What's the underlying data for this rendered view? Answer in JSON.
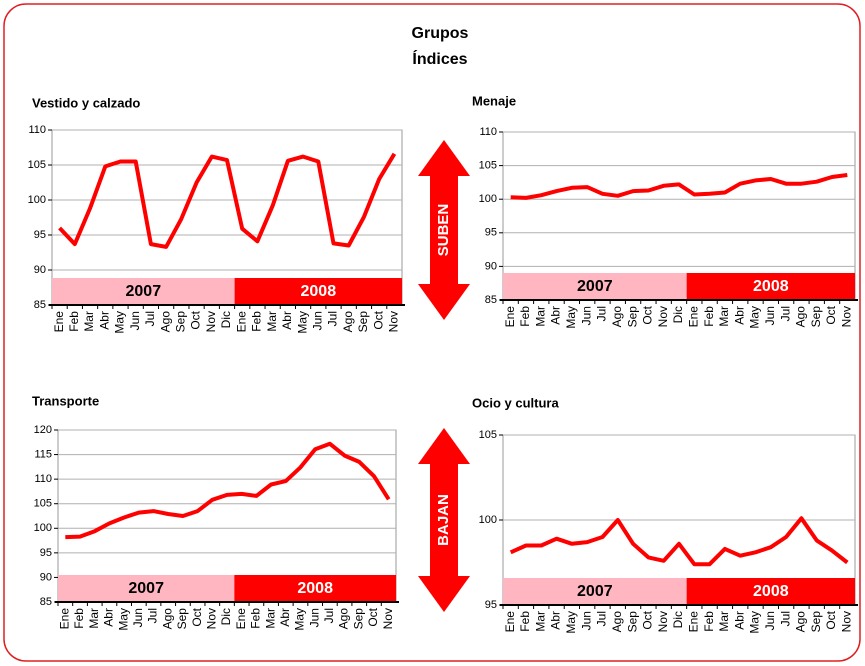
{
  "header": {
    "title": "Grupos",
    "subtitle": "Índices"
  },
  "arrows": [
    {
      "label": "SUBEN",
      "direction": "up"
    },
    {
      "label": "BAJAN",
      "direction": "down"
    }
  ],
  "chart_data": [
    {
      "type": "line",
      "title": "Vestido y calzado",
      "categories": [
        "Ene",
        "Feb",
        "Mar",
        "Abr",
        "May",
        "Jun",
        "Jul",
        "Ago",
        "Sep",
        "Oct",
        "Nov",
        "Dic",
        "Ene",
        "Feb",
        "Mar",
        "Abr",
        "May",
        "Jun",
        "Jul",
        "Ago",
        "Sep",
        "Oct",
        "Nov"
      ],
      "values": [
        96,
        93.7,
        98.8,
        104.8,
        105.5,
        105.5,
        93.7,
        93.3,
        97.3,
        102.5,
        106.2,
        105.7,
        95.9,
        94.1,
        99.2,
        105.6,
        106.2,
        105.5,
        93.8,
        93.5,
        97.6,
        103,
        106.6
      ],
      "color": "#ff0000",
      "ylim": [
        85,
        110
      ],
      "yticks": [
        85,
        90,
        95,
        100,
        105,
        110
      ],
      "grid": true,
      "periods": [
        {
          "label": "2007",
          "from": "Ene",
          "to": "Dic",
          "color": "#ffb6c1"
        },
        {
          "label": "2008",
          "from": "Ene",
          "to": "Nov",
          "color": "#ff0000"
        }
      ]
    },
    {
      "type": "line",
      "title": "Menaje",
      "categories": [
        "Ene",
        "Feb",
        "Mar",
        "Abr",
        "May",
        "Jun",
        "Jul",
        "Ago",
        "Sep",
        "Oct",
        "Nov",
        "Dic",
        "Ene",
        "Feb",
        "Mar",
        "Abr",
        "May",
        "Jun",
        "Jul",
        "Ago",
        "Sep",
        "Oct",
        "Nov"
      ],
      "values": [
        100.3,
        100.2,
        100.6,
        101.2,
        101.7,
        101.8,
        100.8,
        100.5,
        101.2,
        101.3,
        102,
        102.2,
        100.7,
        100.8,
        101,
        102.3,
        102.8,
        103,
        102.3,
        102.3,
        102.6,
        103.3,
        103.6
      ],
      "color": "#ff0000",
      "ylim": [
        85,
        110
      ],
      "yticks": [
        85,
        90,
        95,
        100,
        105,
        110
      ],
      "grid": true,
      "periods": [
        {
          "label": "2007",
          "from": "Ene",
          "to": "Dic",
          "color": "#ffb6c1"
        },
        {
          "label": "2008",
          "from": "Ene",
          "to": "Nov",
          "color": "#ff0000"
        }
      ]
    },
    {
      "type": "line",
      "title": "Transporte",
      "categories": [
        "Ene",
        "Feb",
        "Mar",
        "Abr",
        "May",
        "Jun",
        "Jul",
        "Ago",
        "Sep",
        "Oct",
        "Nov",
        "Dic",
        "Ene",
        "Feb",
        "Mar",
        "Abr",
        "May",
        "Jun",
        "Jul",
        "Ago",
        "Sep",
        "Oct",
        "Nov"
      ],
      "values": [
        98.2,
        98.3,
        99.4,
        101,
        102.2,
        103.2,
        103.5,
        102.9,
        102.5,
        103.5,
        105.8,
        106.8,
        107,
        106.6,
        108.9,
        109.6,
        112.4,
        116.1,
        117.2,
        114.8,
        113.5,
        110.6,
        105.9
      ],
      "color": "#ff0000",
      "ylim": [
        85,
        120
      ],
      "yticks": [
        85,
        90,
        95,
        100,
        105,
        110,
        115,
        120
      ],
      "grid": true,
      "periods": [
        {
          "label": "2007",
          "from": "Ene",
          "to": "Dic",
          "color": "#ffb6c1"
        },
        {
          "label": "2008",
          "from": "Ene",
          "to": "Nov",
          "color": "#ff0000"
        }
      ]
    },
    {
      "type": "line",
      "title": "Ocio y cultura",
      "categories": [
        "Ene",
        "Feb",
        "Mar",
        "Abr",
        "May",
        "Jun",
        "Jul",
        "Ago",
        "Sep",
        "Oct",
        "Nov",
        "Dic",
        "Ene",
        "Feb",
        "Mar",
        "Abr",
        "May",
        "Jun",
        "Jul",
        "Ago",
        "Sep",
        "Oct",
        "Nov"
      ],
      "values": [
        98.1,
        98.5,
        98.5,
        98.9,
        98.6,
        98.7,
        99,
        100,
        98.6,
        97.8,
        97.6,
        98.6,
        97.4,
        97.4,
        98.3,
        97.9,
        98.1,
        98.4,
        99,
        100.1,
        98.8,
        98.2,
        97.5
      ],
      "color": "#ff0000",
      "ylim": [
        95,
        105
      ],
      "yticks": [
        95,
        100,
        105
      ],
      "grid": true,
      "periods": [
        {
          "label": "2007",
          "from": "Ene",
          "to": "Dic",
          "color": "#ffb6c1"
        },
        {
          "label": "2008",
          "from": "Ene",
          "to": "Nov",
          "color": "#ff0000"
        }
      ]
    }
  ]
}
